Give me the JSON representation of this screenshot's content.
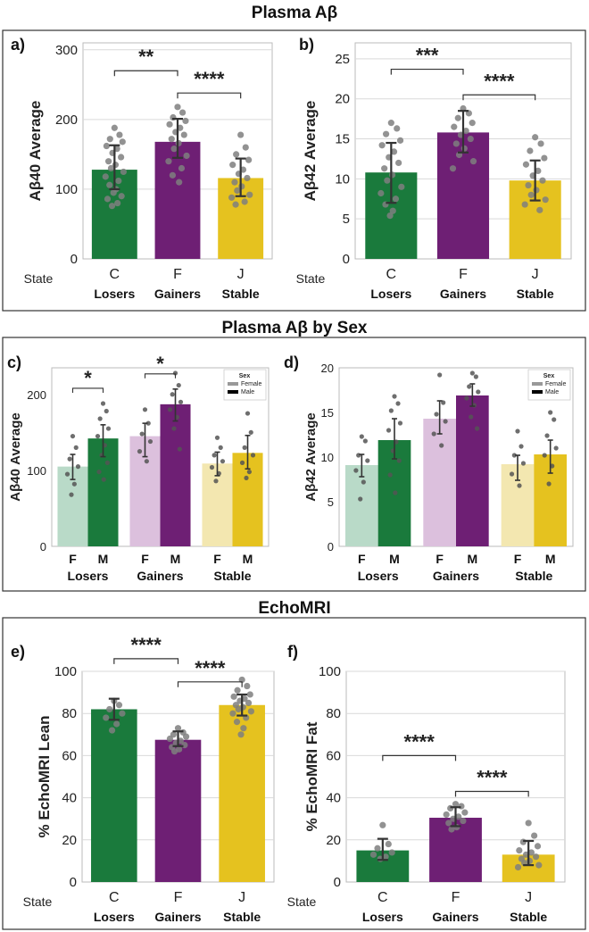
{
  "sections": {
    "plasma": "Plasma Aβ",
    "by_sex": "Plasma Aβ by Sex",
    "echo": "EchoMRI"
  },
  "colors": {
    "Losers": "#1a7a3c",
    "Gainers": "#6e1f74",
    "Stable": "#e5c21f",
    "Losers_light": "#b9dac8",
    "Gainers_light": "#dcc0dd",
    "Stable_light": "#f3e7b0",
    "point": "#7f7f7f",
    "error": "#333333"
  },
  "chart_data": [
    {
      "id": "a",
      "panel_label": "a)",
      "type": "bar",
      "ylabel": "Aβ40 Average",
      "state_label": "State",
      "ylim": [
        0,
        310
      ],
      "yticks": [
        0,
        100,
        200,
        300
      ],
      "categories": [
        "C",
        "F",
        "J"
      ],
      "groups": [
        "Losers",
        "Gainers",
        "Stable"
      ],
      "values": [
        128,
        168,
        116
      ],
      "error": [
        [
          100,
          163
        ],
        [
          145,
          201
        ],
        [
          90,
          144
        ]
      ],
      "points": [
        [
          188,
          178,
          172,
          168,
          162,
          158,
          152,
          146,
          140,
          135,
          130,
          125,
          118,
          112,
          106,
          100,
          95,
          90,
          86,
          80,
          76
        ],
        [
          218,
          210,
          203,
          198,
          193,
          188,
          182,
          178,
          172,
          166,
          158,
          148,
          140,
          130,
          120,
          110
        ],
        [
          178,
          160,
          150,
          142,
          135,
          128,
          122,
          116,
          110,
          104,
          98,
          92,
          88,
          82,
          78
        ]
      ],
      "brackets": [
        {
          "from": 0,
          "to": 1,
          "label": "**",
          "y": 270
        },
        {
          "from": 1,
          "to": 2,
          "label": "****",
          "y": 238
        }
      ]
    },
    {
      "id": "b",
      "panel_label": "b)",
      "type": "bar",
      "ylabel": "Aβ42 Average",
      "state_label": "State",
      "ylim": [
        0,
        27
      ],
      "yticks": [
        0,
        5,
        10,
        15,
        20,
        25
      ],
      "categories": [
        "C",
        "F",
        "J"
      ],
      "groups": [
        "Losers",
        "Gainers",
        "Stable"
      ],
      "values": [
        10.8,
        15.8,
        9.8
      ],
      "error": [
        [
          7.0,
          14.5
        ],
        [
          13.3,
          18.5
        ],
        [
          7.3,
          12.3
        ]
      ],
      "points": [
        [
          17.0,
          16.3,
          15.6,
          14.8,
          14.2,
          13.4,
          12.7,
          12.0,
          11.3,
          10.5,
          9.8,
          9.0,
          8.2,
          7.5,
          6.8,
          6.0,
          5.4
        ],
        [
          18.8,
          18.2,
          17.6,
          17.0,
          16.5,
          16.0,
          15.5,
          15.0,
          14.4,
          13.8,
          13.0,
          12.2,
          11.3
        ],
        [
          15.2,
          14.4,
          13.5,
          12.6,
          11.8,
          11.0,
          10.4,
          9.8,
          9.2,
          8.6,
          8.0,
          7.4,
          6.8,
          6.1
        ]
      ],
      "brackets": [
        {
          "from": 0,
          "to": 1,
          "label": "***",
          "y": 23.7
        },
        {
          "from": 1,
          "to": 2,
          "label": "****",
          "y": 20.5
        }
      ]
    },
    {
      "id": "c",
      "panel_label": "c)",
      "type": "bar",
      "ylabel": "Aβ40 Average",
      "ylim": [
        0,
        235
      ],
      "yticks": [
        0,
        100,
        200
      ],
      "groups": [
        "Losers",
        "Gainers",
        "Stable"
      ],
      "sexes": [
        "F",
        "M"
      ],
      "legend": {
        "title": "Sex",
        "entries": [
          "Female",
          "Male"
        ]
      },
      "values": [
        [
          105,
          142
        ],
        [
          145,
          187
        ],
        [
          109,
          123
        ]
      ],
      "error": [
        [
          [
            88,
            121
          ],
          [
            118,
            160
          ]
        ],
        [
          [
            118,
            162
          ],
          [
            165,
            207
          ]
        ],
        [
          [
            93,
            124
          ],
          [
            102,
            146
          ]
        ]
      ],
      "points": [
        [
          [
            145,
            130,
            115,
            105,
            95,
            82,
            68
          ],
          [
            188,
            178,
            168,
            155,
            145,
            133,
            120,
            110,
            98,
            88
          ]
        ],
        [
          [
            180,
            162,
            148,
            138,
            125,
            112
          ],
          [
            228,
            212,
            200,
            190,
            180,
            170,
            155,
            128
          ]
        ],
        [
          [
            143,
            130,
            120,
            112,
            104,
            96,
            86
          ],
          [
            175,
            150,
            130,
            120,
            110,
            98,
            90
          ]
        ]
      ],
      "brackets": [
        {
          "group": 0,
          "label": "*",
          "y": 208
        },
        {
          "group": 1,
          "label": "*",
          "y": 227
        }
      ]
    },
    {
      "id": "d",
      "panel_label": "d)",
      "type": "bar",
      "ylabel": "Aβ42 Average",
      "ylim": [
        0,
        20
      ],
      "yticks": [
        0,
        5,
        10,
        15,
        20
      ],
      "groups": [
        "Losers",
        "Gainers",
        "Stable"
      ],
      "sexes": [
        "F",
        "M"
      ],
      "legend": {
        "title": "Sex",
        "entries": [
          "Female",
          "Male"
        ]
      },
      "values": [
        [
          9.1,
          11.9
        ],
        [
          14.3,
          16.9
        ],
        [
          9.2,
          10.3
        ]
      ],
      "error": [
        [
          [
            7.8,
            10.3
          ],
          [
            9.8,
            14.3
          ]
        ],
        [
          [
            12.6,
            16.3
          ],
          [
            15.7,
            18.2
          ]
        ],
        [
          [
            7.4,
            10.2
          ],
          [
            8.2,
            11.9
          ]
        ]
      ],
      "points": [
        [
          [
            12.3,
            11.8,
            10.2,
            9.6,
            8.5,
            7.2,
            5.3
          ],
          [
            16.8,
            16.0,
            15.2,
            13.8,
            13.0,
            11.7,
            10.7,
            9.6,
            8.0,
            6.0
          ]
        ],
        [
          [
            19.2,
            16.1,
            14.8,
            14.0,
            12.6,
            11.3
          ],
          [
            19.4,
            19.0,
            17.9,
            17.3,
            16.6,
            15.8,
            14.5,
            13.2
          ]
        ],
        [
          [
            12.9,
            11.2,
            10.2,
            9.3,
            8.1,
            6.8
          ],
          [
            15.0,
            14.2,
            12.4,
            11.0,
            10.2,
            9.0,
            7.0
          ]
        ]
      ],
      "brackets": []
    },
    {
      "id": "e",
      "panel_label": "e)",
      "type": "bar",
      "ylabel": "% EchoMRI Lean",
      "state_label": "State",
      "ylim": [
        0,
        100
      ],
      "yticks": [
        0,
        20,
        40,
        60,
        80,
        100
      ],
      "categories": [
        "C",
        "F",
        "J"
      ],
      "groups": [
        "Losers",
        "Gainers",
        "Stable"
      ],
      "values": [
        82,
        67.5,
        84
      ],
      "error": [
        [
          77,
          87
        ],
        [
          64.5,
          71.5
        ],
        [
          79,
          89
        ]
      ],
      "points": [
        [
          86,
          84,
          82,
          80,
          78,
          75,
          72
        ],
        [
          73,
          71,
          70,
          69,
          68,
          67,
          66,
          65,
          64,
          63,
          62
        ],
        [
          96,
          93,
          91,
          89,
          88,
          87,
          86,
          85,
          84,
          83,
          82,
          81,
          80,
          78,
          76,
          73,
          70
        ]
      ],
      "brackets": [
        {
          "from": 0,
          "to": 1,
          "label": "****",
          "y": 106
        },
        {
          "from": 1,
          "to": 2,
          "label": "****",
          "y": 95
        }
      ]
    },
    {
      "id": "f",
      "panel_label": "f)",
      "type": "bar",
      "ylabel": "% EchoMRI Fat",
      "state_label": "State",
      "ylim": [
        0,
        100
      ],
      "yticks": [
        0,
        20,
        40,
        60,
        80,
        100
      ],
      "categories": [
        "C",
        "F",
        "J"
      ],
      "groups": [
        "Losers",
        "Gainers",
        "Stable"
      ],
      "values": [
        15,
        30.5,
        13
      ],
      "error": [
        [
          10.5,
          20.5
        ],
        [
          26.5,
          35.5
        ],
        [
          8,
          19.5
        ]
      ],
      "points": [
        [
          27,
          18,
          16,
          14,
          13,
          12,
          11
        ],
        [
          37,
          36,
          35,
          33,
          32,
          31,
          30,
          29,
          28,
          26,
          25
        ],
        [
          28,
          22,
          19,
          17,
          15,
          14,
          13,
          12,
          11,
          10,
          9,
          8,
          7
        ]
      ],
      "brackets": [
        {
          "from": 0,
          "to": 1,
          "label": "****",
          "y": 60
        },
        {
          "from": 1,
          "to": 2,
          "label": "****",
          "y": 43
        }
      ]
    }
  ]
}
